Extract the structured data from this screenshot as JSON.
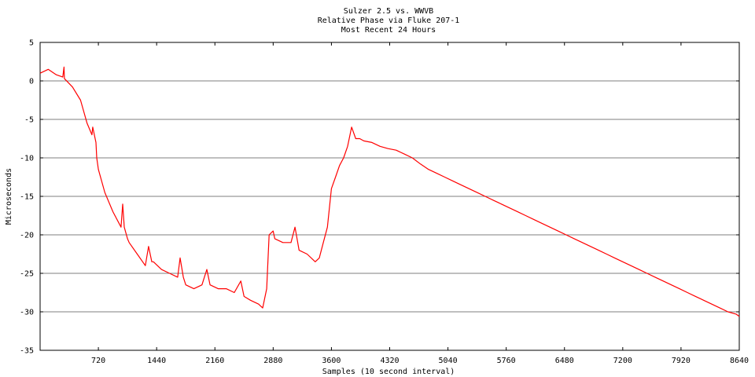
{
  "chart_data": {
    "type": "line",
    "title_lines": [
      "Sulzer 2.5 vs. WWVB",
      "Relative Phase via Fluke 207-1",
      "Most Recent 24 Hours"
    ],
    "xlabel": "Samples (10 second interval)",
    "ylabel": "Microseconds",
    "xlim": [
      0,
      8640
    ],
    "ylim": [
      -35,
      5
    ],
    "x_ticks": [
      720,
      1440,
      2160,
      2880,
      3600,
      4320,
      5040,
      5760,
      6480,
      7200,
      7920,
      8640
    ],
    "y_ticks": [
      5,
      0,
      -5,
      -10,
      -15,
      -20,
      -25,
      -30,
      -35
    ],
    "grid": "horizontal",
    "line_color": "#ff0000",
    "series": [
      {
        "x": [
          0,
          100,
          200,
          280,
          295,
          300,
          400,
          500,
          580,
          640,
          650,
          690,
          700,
          720,
          800,
          900,
          1000,
          1020,
          1040,
          1080,
          1100,
          1200,
          1300,
          1340,
          1380,
          1400,
          1500,
          1600,
          1700,
          1730,
          1770,
          1800,
          1900,
          2000,
          2060,
          2100,
          2200,
          2300,
          2400,
          2480,
          2520,
          2600,
          2700,
          2750,
          2800,
          2830,
          2880,
          2900,
          3000,
          3100,
          3150,
          3200,
          3300,
          3400,
          3450,
          3500,
          3550,
          3600,
          3650,
          3700,
          3750,
          3800,
          3850,
          3900,
          3950,
          4000,
          4100,
          4200,
          4300,
          4400,
          4500,
          4600,
          4700,
          4800,
          4900,
          5000,
          5100,
          5200,
          5300,
          5400,
          5500,
          5600,
          5700,
          5800,
          5900,
          6000,
          6100,
          6200,
          6300,
          6400,
          6500,
          6600,
          6700,
          6800,
          6900,
          7000,
          7100,
          7200,
          7300,
          7400,
          7500,
          7600,
          7700,
          7800,
          7900,
          8000,
          8100,
          8200,
          8300,
          8400,
          8500,
          8600,
          8640
        ],
        "y": [
          1.0,
          1.5,
          0.8,
          0.5,
          1.8,
          0.3,
          -0.8,
          -2.5,
          -5.5,
          -7.0,
          -6.0,
          -8.0,
          -10.0,
          -11.5,
          -14.5,
          -17.0,
          -19.0,
          -16.0,
          -19.0,
          -20.5,
          -21.0,
          -22.5,
          -24.0,
          -21.5,
          -23.5,
          -23.5,
          -24.5,
          -25.0,
          -25.5,
          -23.0,
          -25.5,
          -26.5,
          -27.0,
          -26.5,
          -24.5,
          -26.5,
          -27.0,
          -27.0,
          -27.5,
          -26.0,
          -28.0,
          -28.5,
          -29.0,
          -29.5,
          -27.0,
          -20.0,
          -19.5,
          -20.5,
          -21.0,
          -21.0,
          -19.0,
          -22.0,
          -22.5,
          -23.5,
          -23.0,
          -21.0,
          -19.0,
          -14.0,
          -12.5,
          -11.0,
          -10.0,
          -8.5,
          -6.0,
          -7.5,
          -7.5,
          -7.8,
          -8.0,
          -8.5,
          -8.8,
          -9.0,
          -9.5,
          -10.0,
          -10.8,
          -11.5,
          -12.0,
          -12.5,
          -13.0,
          -13.5,
          -14.0,
          -14.5,
          -15.0,
          -15.5,
          -16.0,
          -16.5,
          -17.0,
          -17.5,
          -18.0,
          -18.5,
          -19.0,
          -19.5,
          -20.0,
          -20.5,
          -21.0,
          -21.5,
          -22.0,
          -22.5,
          -23.0,
          -23.5,
          -24.0,
          -24.5,
          -25.0,
          -25.5,
          -26.0,
          -26.5,
          -27.0,
          -27.5,
          -28.0,
          -28.5,
          -29.0,
          -29.5,
          -30.0,
          -30.3,
          -30.6
        ]
      }
    ]
  }
}
